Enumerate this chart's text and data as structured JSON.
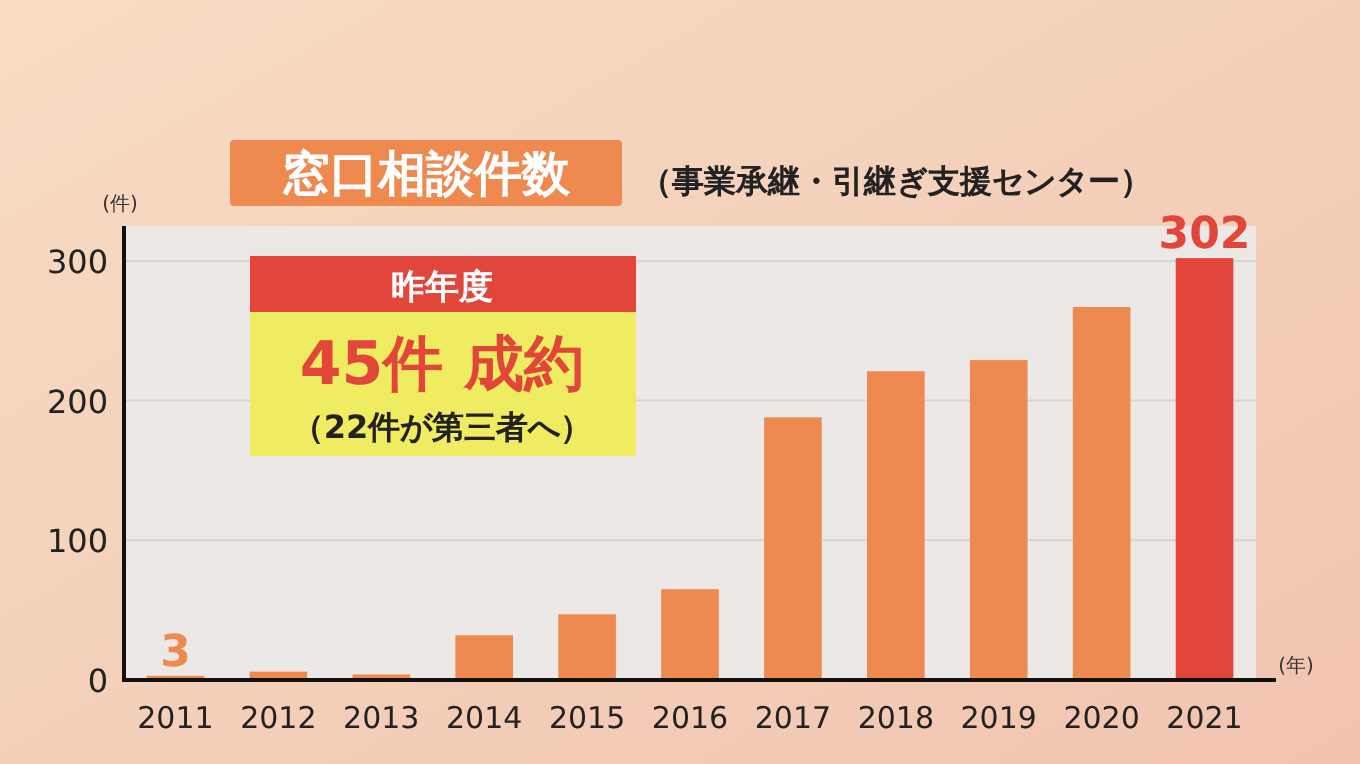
{
  "chart_data": {
    "type": "bar",
    "title": "窓口相談件数",
    "subtitle": "（事業承継・引継ぎ支援センター）",
    "ylabel": "(件)",
    "xlabel": "(年)",
    "categories": [
      "2011",
      "2012",
      "2013",
      "2014",
      "2015",
      "2016",
      "2017",
      "2018",
      "2019",
      "2020",
      "2021"
    ],
    "values": [
      3,
      6,
      4,
      32,
      47,
      65,
      188,
      221,
      229,
      267,
      302
    ],
    "colors": [
      "#ee8a50",
      "#ee8a50",
      "#ee8a50",
      "#ee8a50",
      "#ee8a50",
      "#ee8a50",
      "#ee8a50",
      "#ee8a50",
      "#ee8a50",
      "#ee8a50",
      "#e2463a"
    ],
    "value_labels": [
      "3",
      null,
      null,
      null,
      null,
      null,
      null,
      null,
      null,
      null,
      "302"
    ],
    "ylim": [
      0,
      325
    ],
    "yticks": [
      0,
      100,
      200,
      300
    ],
    "grid": "y",
    "annotations": [
      "昨年度",
      "45件 成約",
      "（22件が第三者へ）"
    ]
  }
}
